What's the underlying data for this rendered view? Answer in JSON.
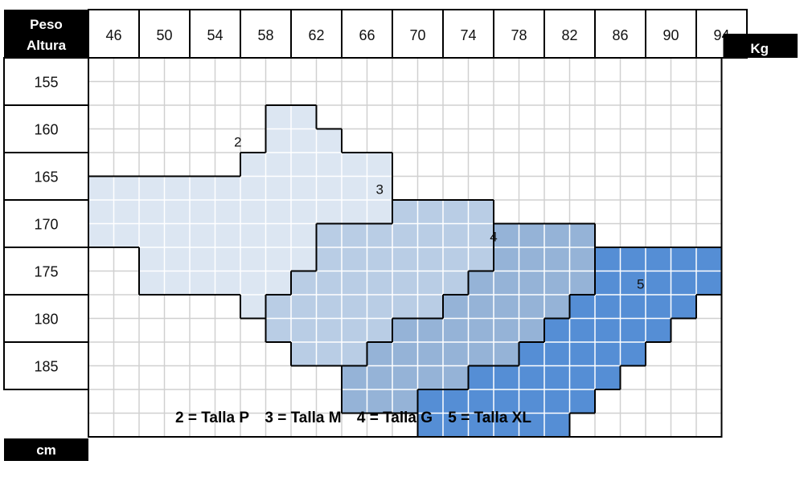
{
  "chart_data": {
    "type": "heatmap",
    "corner_labels": {
      "x_title": "Peso",
      "y_title": "Altura"
    },
    "x_unit": "Kg",
    "y_unit": "cm",
    "weights": [
      "46",
      "50",
      "54",
      "58",
      "62",
      "66",
      "70",
      "74",
      "78",
      "82",
      "86",
      "90",
      "94"
    ],
    "heights": [
      "155",
      "160",
      "165",
      "170",
      "175",
      "180",
      "185"
    ],
    "sizes": [
      {
        "id": 2,
        "label": "2",
        "legend": "2 = Talla P",
        "color": "#dce6f2"
      },
      {
        "id": 3,
        "label": "3",
        "legend": "3 = Talla M",
        "color": "#b9cde5"
      },
      {
        "id": 4,
        "label": "4",
        "legend": "4 = Talla G",
        "color": "#95b3d7"
      },
      {
        "id": 5,
        "label": "5",
        "legend": "5 = Talla XL",
        "color": "#558ed5"
      }
    ],
    "grid": [
      "0000000000000000000000000",
      "0000000000000000000000000",
      "0000000220000000000000000",
      "0000000222000000000000000",
      "0000002222220000000000000",
      "2222222222220000000000000",
      "2222222222223333000000000",
      "2222222223333333444400000",
      "0022222223333333444455555",
      "0022222233333334444455555",
      "0000002333333344444555550",
      "0000000333334444445555500",
      "0000000033344444455555000",
      "0000000000444445555550000",
      "0000000000444555555500000",
      "0000000000000555555000000"
    ],
    "grid_color": "#d0d0d0",
    "border_color": "#000000",
    "header_fill": "#000000",
    "header_text": "#ffffff"
  },
  "legend_text": [
    "2 = Talla P",
    "3 = Talla M",
    "4 = Talla G",
    "5 = Talla XL"
  ]
}
